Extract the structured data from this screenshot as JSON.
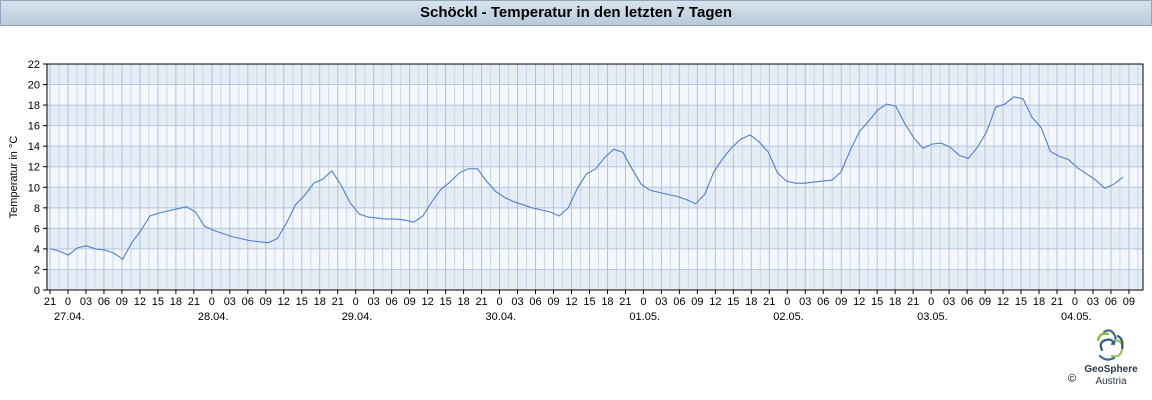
{
  "chart_data": {
    "type": "line",
    "title": "Schöckl - Temperatur in den letzten 7 Tagen",
    "ylabel": "Temperatur in °C",
    "xlabel": "",
    "ylim": [
      0,
      22
    ],
    "yticks": [
      "0",
      "2",
      "4",
      "6",
      "8",
      "10",
      "12",
      "14",
      "16",
      "18",
      "20",
      "22"
    ],
    "hour_ticks": [
      "21",
      "0",
      "03",
      "06",
      "09",
      "12",
      "15",
      "18",
      "21",
      "0",
      "03",
      "06",
      "09",
      "12",
      "15",
      "18",
      "21",
      "0",
      "03",
      "06",
      "09",
      "12",
      "15",
      "18",
      "21",
      "0",
      "03",
      "06",
      "09",
      "12",
      "15",
      "18",
      "21",
      "0",
      "03",
      "06",
      "09",
      "12",
      "15",
      "18",
      "21",
      "0",
      "03",
      "06",
      "09",
      "12",
      "15",
      "18",
      "21",
      "0",
      "03",
      "06",
      "09",
      "12",
      "15",
      "18",
      "21",
      "0",
      "03",
      "06",
      "09"
    ],
    "date_ticks": [
      "27.04.",
      "28.04.",
      "29.04.",
      "30.04.",
      "01.05.",
      "02.05.",
      "03.05.",
      "04.05."
    ],
    "x_start": "26.04. 21:00",
    "x_step_hours": 3,
    "grid": true,
    "series": [
      {
        "color": "#4f7fd0",
        "values": [
          4.0,
          3.8,
          3.4,
          4.1,
          4.3,
          4.0,
          3.9,
          3.6,
          3.0,
          4.6,
          5.8,
          7.2,
          7.5,
          7.7,
          7.9,
          8.1,
          7.6,
          6.2,
          5.8,
          5.5,
          5.2,
          5.0,
          4.8,
          4.7,
          4.6,
          5.0,
          6.5,
          8.3,
          9.2,
          10.4,
          10.8,
          11.6,
          10.2,
          8.5,
          7.4,
          7.1,
          7.0,
          6.9,
          6.9,
          6.8,
          6.6,
          7.2,
          8.6,
          9.8,
          10.5,
          11.4,
          11.8,
          11.8,
          10.6,
          9.6,
          9.0,
          8.6,
          8.3,
          8.0,
          7.8,
          7.6,
          7.2,
          8.0,
          9.9,
          11.3,
          11.8,
          12.9,
          13.7,
          13.4,
          11.8,
          10.3,
          9.7,
          9.5,
          9.3,
          9.1,
          8.8,
          8.4,
          9.3,
          11.5,
          12.8,
          13.9,
          14.7,
          15.1,
          14.4,
          13.4,
          11.4,
          10.6,
          10.4,
          10.4,
          10.5,
          10.6,
          10.7,
          11.5,
          13.6,
          15.4,
          16.4,
          17.5,
          18.1,
          17.9,
          16.2,
          14.8,
          13.8,
          14.2,
          14.3,
          13.9,
          13.1,
          12.8,
          13.9,
          15.4,
          17.8,
          18.1,
          18.8,
          18.6,
          16.8,
          15.8,
          13.5,
          13.0,
          12.7,
          11.9,
          11.3,
          10.7,
          9.9,
          10.3,
          11.0
        ]
      }
    ]
  },
  "brand": {
    "line1": "GeoSphere",
    "line2": "Austria"
  },
  "copyright": "©"
}
